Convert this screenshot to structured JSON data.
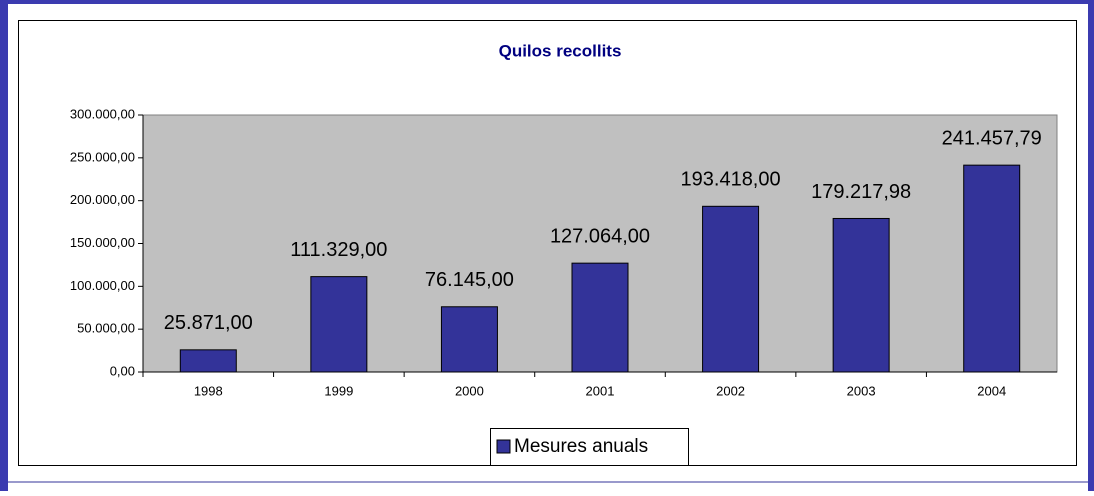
{
  "chart_data": {
    "type": "bar",
    "title": "Quilos recollits",
    "categories": [
      "1998",
      "1999",
      "2000",
      "2001",
      "2002",
      "2003",
      "2004"
    ],
    "series": [
      {
        "name": "Mesures anuals",
        "color": "#333399",
        "values": [
          25871,
          111329,
          76145,
          127064,
          193418,
          179217.98,
          241457.79
        ],
        "value_labels": [
          "25.871,00",
          "111.329,00",
          "76.145,00",
          "127.064,00",
          "193.418,00",
          "179.217,98",
          "241.457,79"
        ]
      }
    ],
    "ylim": [
      0,
      300000
    ],
    "yticks": [
      {
        "value": 0,
        "label": "0,00"
      },
      {
        "value": 50000,
        "label": "50.000,00"
      },
      {
        "value": 100000,
        "label": "100.000,00"
      },
      {
        "value": 150000,
        "label": "150.000,00"
      },
      {
        "value": 200000,
        "label": "200.000,00"
      },
      {
        "value": 250000,
        "label": "250.000,00"
      },
      {
        "value": 300000,
        "label": "300.000,00"
      }
    ],
    "grid": false,
    "legend": "bottom",
    "plot_background": "#c0c0c0"
  }
}
